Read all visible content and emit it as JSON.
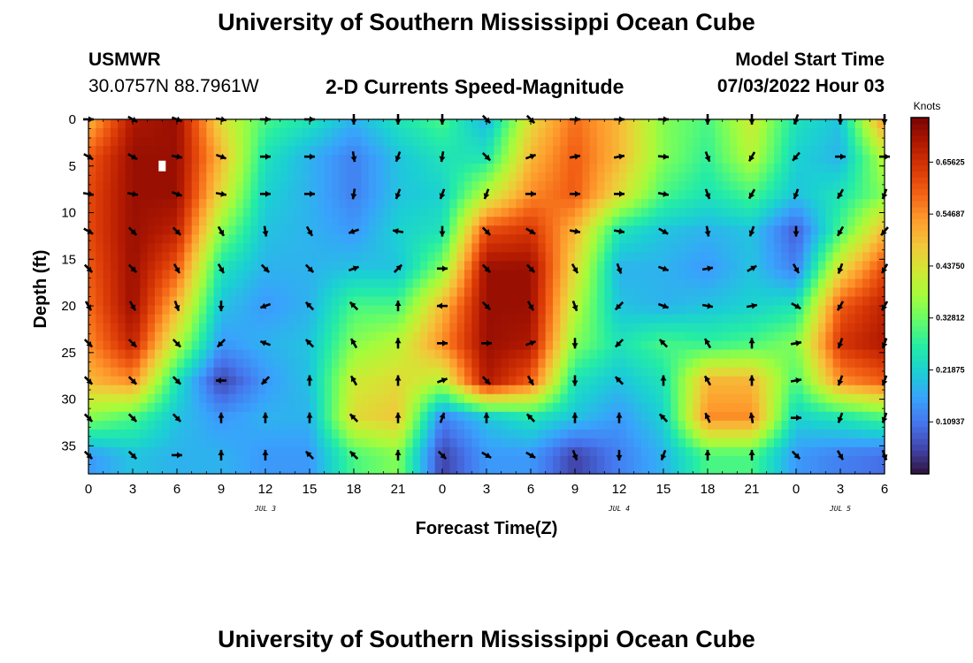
{
  "page_title": "University of Southern Mississippi Ocean Cube",
  "page_title_bottom": "University of Southern Mississippi Ocean Cube",
  "station": {
    "name": "USMWR",
    "coordinates": "30.0757N  88.7961W"
  },
  "model_start": {
    "label": "Model Start Time",
    "value": "07/03/2022 Hour 03"
  },
  "chart_data": {
    "type": "heatmap",
    "title": "2-D Currents Speed-Magnitude",
    "xlabel": "Forecast Time(Z)",
    "ylabel": "Depth (ft)",
    "xlim": [
      0,
      54
    ],
    "ylim": [
      38,
      0
    ],
    "x_ticks": [
      0,
      3,
      6,
      9,
      12,
      15,
      18,
      21,
      24,
      27,
      30,
      33,
      36,
      39,
      42,
      45,
      48,
      51,
      54
    ],
    "x_tick_labels": [
      "0",
      "3",
      "6",
      "9",
      "12",
      "15",
      "18",
      "21",
      "0",
      "3",
      "6",
      "9",
      "12",
      "15",
      "18",
      "21",
      "0",
      "3",
      "6"
    ],
    "y_ticks": [
      0,
      5,
      10,
      15,
      20,
      25,
      30,
      35
    ],
    "y_tick_labels": [
      "0",
      "5",
      "10",
      "15",
      "20",
      "25",
      "30",
      "35"
    ],
    "date_labels": [
      {
        "x": 12,
        "text": "JUL 3"
      },
      {
        "x": 36,
        "text": "JUL 4"
      },
      {
        "x": 51,
        "text": "JUL 5"
      }
    ],
    "colorbar": {
      "title": "Knots",
      "min": 0.0,
      "max": 0.75,
      "ticks": [
        0.10937,
        0.21875,
        0.32812,
        0.4375,
        0.54687,
        0.65625
      ],
      "tick_labels": [
        "0.10937",
        "0.21875",
        "0.32812",
        "0.43750",
        "0.54687",
        "0.65625"
      ],
      "colors": [
        "#30123b",
        "#4145ab",
        "#4675ed",
        "#39a2fc",
        "#1bcfd4",
        "#24eca6",
        "#61fc6c",
        "#a4fc3b",
        "#d1e834",
        "#f3c63a",
        "#fe9b2d",
        "#f36315",
        "#d93806",
        "#b11901",
        "#7a0403"
      ]
    },
    "speed_grid": {
      "x": [
        0,
        3,
        6,
        9,
        12,
        15,
        18,
        21,
        24,
        27,
        30,
        33,
        36,
        39,
        42,
        45,
        48,
        51,
        54
      ],
      "depth": [
        0,
        4,
        8,
        12,
        16,
        20,
        24,
        28,
        32,
        36
      ],
      "values": [
        [
          0.5,
          0.7,
          0.72,
          0.45,
          0.3,
          0.25,
          0.18,
          0.25,
          0.3,
          0.18,
          0.45,
          0.58,
          0.5,
          0.35,
          0.3,
          0.42,
          0.25,
          0.2,
          0.55
        ],
        [
          0.6,
          0.72,
          0.72,
          0.5,
          0.25,
          0.18,
          0.12,
          0.2,
          0.25,
          0.25,
          0.5,
          0.6,
          0.5,
          0.35,
          0.28,
          0.4,
          0.22,
          0.18,
          0.4
        ],
        [
          0.62,
          0.72,
          0.72,
          0.45,
          0.22,
          0.18,
          0.12,
          0.2,
          0.22,
          0.4,
          0.55,
          0.6,
          0.45,
          0.3,
          0.25,
          0.3,
          0.2,
          0.25,
          0.35
        ],
        [
          0.62,
          0.72,
          0.68,
          0.35,
          0.2,
          0.18,
          0.15,
          0.22,
          0.25,
          0.62,
          0.65,
          0.5,
          0.25,
          0.2,
          0.18,
          0.2,
          0.08,
          0.3,
          0.5
        ],
        [
          0.6,
          0.72,
          0.6,
          0.25,
          0.18,
          0.18,
          0.2,
          0.2,
          0.35,
          0.72,
          0.72,
          0.45,
          0.18,
          0.18,
          0.15,
          0.2,
          0.12,
          0.45,
          0.62
        ],
        [
          0.58,
          0.72,
          0.5,
          0.2,
          0.15,
          0.18,
          0.3,
          0.3,
          0.5,
          0.72,
          0.72,
          0.4,
          0.2,
          0.18,
          0.2,
          0.22,
          0.25,
          0.6,
          0.68
        ],
        [
          0.55,
          0.68,
          0.4,
          0.15,
          0.18,
          0.2,
          0.35,
          0.4,
          0.55,
          0.72,
          0.7,
          0.35,
          0.25,
          0.3,
          0.28,
          0.3,
          0.35,
          0.65,
          0.7
        ],
        [
          0.5,
          0.55,
          0.25,
          0.05,
          0.15,
          0.2,
          0.42,
          0.45,
          0.4,
          0.7,
          0.6,
          0.25,
          0.2,
          0.25,
          0.5,
          0.5,
          0.3,
          0.55,
          0.6
        ],
        [
          0.35,
          0.3,
          0.2,
          0.15,
          0.18,
          0.18,
          0.45,
          0.48,
          0.12,
          0.2,
          0.25,
          0.2,
          0.15,
          0.22,
          0.55,
          0.55,
          0.22,
          0.25,
          0.3
        ],
        [
          0.15,
          0.2,
          0.18,
          0.18,
          0.15,
          0.15,
          0.3,
          0.35,
          0.05,
          0.15,
          0.15,
          0.05,
          0.12,
          0.18,
          0.3,
          0.3,
          0.15,
          0.12,
          0.1
        ]
      ]
    },
    "vectors": {
      "x": [
        0,
        3,
        6,
        9,
        12,
        15,
        18,
        21,
        24,
        27,
        30,
        33,
        36,
        39,
        42,
        45,
        48,
        51,
        54
      ],
      "depth": [
        0,
        4,
        8,
        12,
        16,
        20,
        24,
        28,
        32,
        36
      ],
      "direction_deg": [
        [
          90,
          120,
          110,
          100,
          90,
          90,
          180,
          180,
          180,
          135,
          135,
          90,
          90,
          90,
          180,
          180,
          200,
          180,
          180
        ],
        [
          120,
          120,
          100,
          110,
          90,
          90,
          170,
          200,
          190,
          135,
          70,
          80,
          80,
          95,
          160,
          210,
          220,
          90,
          90
        ],
        [
          100,
          100,
          110,
          100,
          90,
          90,
          190,
          200,
          200,
          200,
          90,
          90,
          90,
          100,
          160,
          210,
          200,
          210,
          200
        ],
        [
          120,
          135,
          135,
          150,
          170,
          150,
          250,
          280,
          180,
          135,
          120,
          100,
          100,
          120,
          170,
          200,
          180,
          210,
          220
        ],
        [
          135,
          135,
          150,
          150,
          135,
          135,
          70,
          45,
          90,
          135,
          135,
          150,
          160,
          110,
          80,
          60,
          150,
          200,
          210
        ],
        [
          150,
          150,
          160,
          180,
          250,
          315,
          315,
          0,
          270,
          135,
          150,
          160,
          225,
          110,
          100,
          80,
          120,
          210,
          210
        ],
        [
          135,
          135,
          135,
          225,
          290,
          315,
          330,
          0,
          90,
          90,
          70,
          180,
          225,
          315,
          330,
          0,
          80,
          200,
          200
        ],
        [
          135,
          135,
          135,
          270,
          225,
          0,
          330,
          0,
          70,
          135,
          150,
          180,
          315,
          0,
          330,
          0,
          80,
          200,
          200
        ],
        [
          135,
          135,
          135,
          0,
          0,
          0,
          315,
          0,
          20,
          0,
          315,
          0,
          0,
          315,
          335,
          350,
          90,
          200,
          200
        ],
        [
          135,
          135,
          90,
          0,
          0,
          315,
          315,
          0,
          135,
          120,
          120,
          160,
          180,
          200,
          0,
          0,
          135,
          150,
          160
        ]
      ]
    },
    "marker": {
      "x": 5,
      "depth": 5
    }
  }
}
